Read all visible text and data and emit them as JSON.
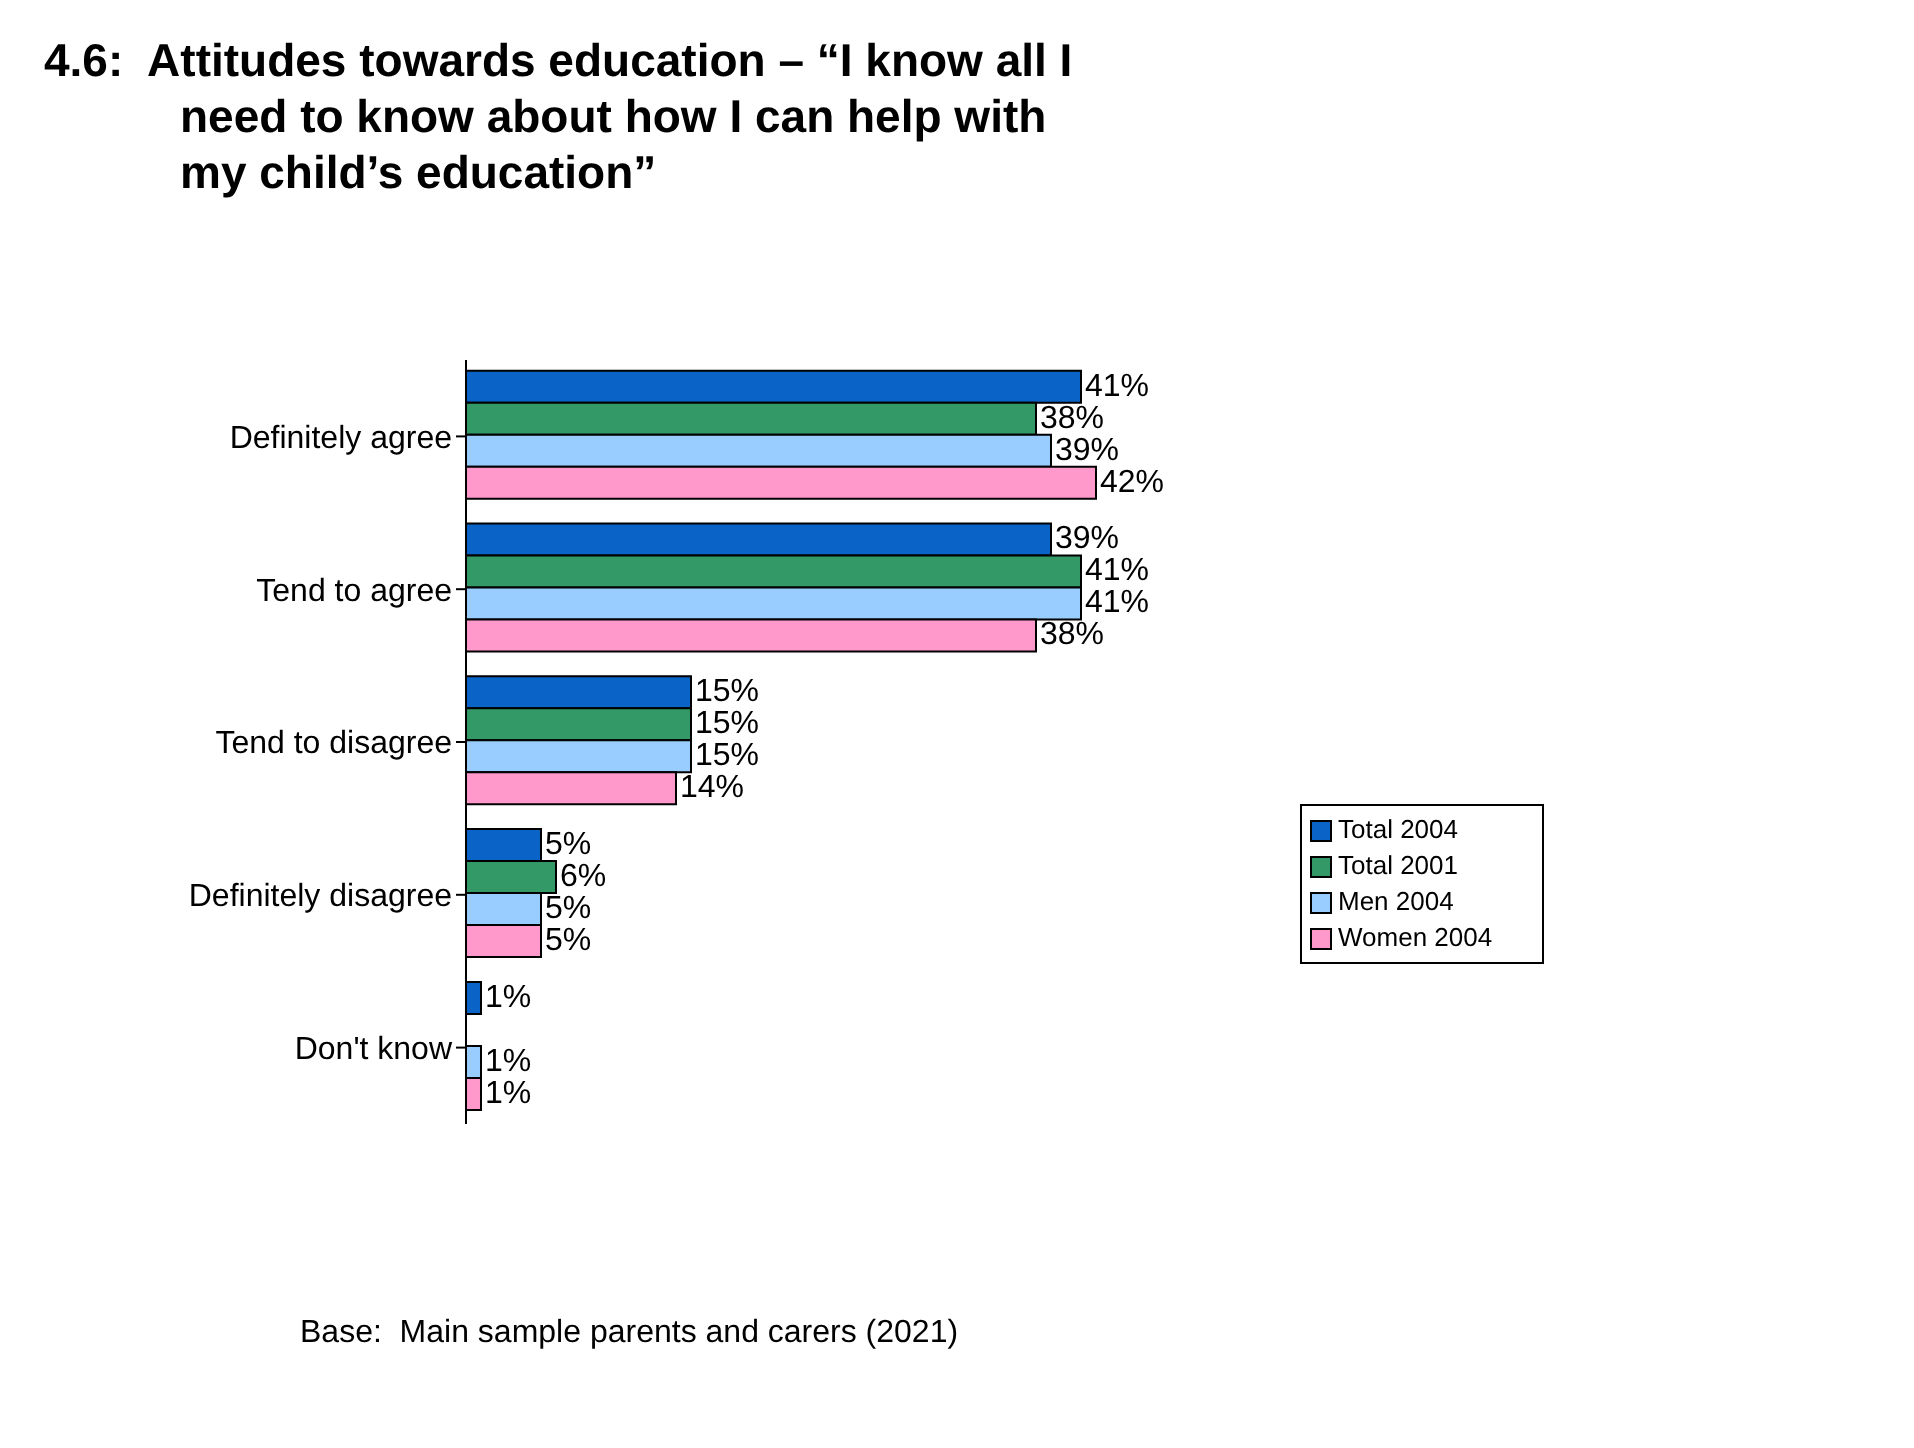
{
  "chart_data": {
    "type": "bar",
    "orientation": "horizontal",
    "title": "4.6:  Attitudes towards education – “I know all I need to know about how I can help with my child’s education”",
    "categories": [
      "Definitely agree",
      "Tend to agree",
      "Tend to disagree",
      "Definitely disagree",
      "Don't know"
    ],
    "series": [
      {
        "name": "Total 2004",
        "color": "#0a64c8",
        "values": [
          41,
          39,
          15,
          5,
          1
        ],
        "value_labels": [
          "41%",
          "39%",
          "15%",
          "5%",
          "1%"
        ]
      },
      {
        "name": "Total 2001",
        "color": "#339966",
        "values": [
          38,
          41,
          15,
          6,
          null
        ],
        "value_labels": [
          "38%",
          "41%",
          "15%",
          "6%",
          null
        ]
      },
      {
        "name": "Men 2004",
        "color": "#99ccff",
        "values": [
          39,
          41,
          15,
          5,
          1
        ],
        "value_labels": [
          "39%",
          "41%",
          "15%",
          "5%",
          "1%"
        ]
      },
      {
        "name": "Women 2004",
        "color": "#ff99cc",
        "values": [
          42,
          38,
          14,
          5,
          1
        ],
        "value_labels": [
          "42%",
          "38%",
          "14%",
          "5%",
          "1%"
        ]
      }
    ],
    "legend": "right",
    "grid": false,
    "annotations": [
      "Base:  Main sample parents and carers (2021)"
    ]
  }
}
